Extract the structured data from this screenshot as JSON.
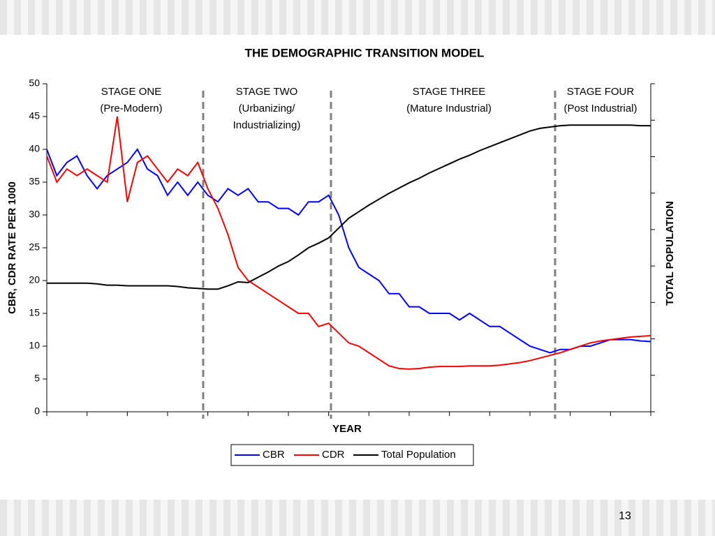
{
  "slide_number": "13",
  "chart_data": {
    "type": "line",
    "title": "THE DEMOGRAPHIC TRANSITION MODEL",
    "x_label": "YEAR",
    "y_label": "CBR, CDR RATE PER 1000",
    "y2_label": "TOTAL POPULATION",
    "ylim": [
      0,
      50
    ],
    "yticks": [
      0,
      5,
      10,
      15,
      20,
      25,
      30,
      35,
      40,
      45,
      50
    ],
    "stages": [
      {
        "lines": [
          "STAGE ONE",
          "(Pre-Modern)"
        ]
      },
      {
        "lines": [
          "STAGE TWO",
          "(Urbanizing/",
          "Industrializing)"
        ]
      },
      {
        "lines": [
          "STAGE THREE",
          "(Mature Industrial)"
        ]
      },
      {
        "lines": [
          "STAGE FOUR",
          "(Post Industrial)"
        ]
      }
    ],
    "legend": "bottom",
    "series": [
      {
        "name": "CBR",
        "color": "#0000ff",
        "values": [
          40,
          36,
          38,
          39,
          36,
          34,
          36,
          37,
          38,
          40,
          37,
          36,
          33,
          35,
          33,
          35,
          33,
          32,
          34,
          33,
          34,
          32,
          32,
          31,
          31,
          30,
          32,
          32,
          33,
          30,
          25,
          22,
          21,
          20,
          18,
          18,
          16,
          16,
          15,
          15,
          15,
          14,
          15,
          14,
          13,
          13,
          12,
          11,
          10,
          9.5,
          9,
          9.5,
          9.5,
          10,
          10,
          10.5,
          11,
          11,
          11,
          10.8,
          10.7
        ]
      },
      {
        "name": "CDR",
        "color": "#ff0000",
        "values": [
          39,
          35,
          37,
          36,
          37,
          36,
          35,
          45,
          32,
          38,
          39,
          37,
          35,
          37,
          36,
          38,
          34,
          31,
          27,
          22,
          20,
          19,
          18,
          17,
          16,
          15,
          15,
          13,
          13.5,
          12,
          10.5,
          10,
          9,
          8,
          7,
          6.6,
          6.5,
          6.6,
          6.8,
          6.9,
          6.9,
          6.9,
          7,
          7,
          7,
          7.1,
          7.3,
          7.5,
          7.8,
          8.2,
          8.6,
          9,
          9.5,
          10,
          10.5,
          10.8,
          11,
          11.2,
          11.4,
          11.5,
          11.6
        ]
      },
      {
        "name": "Total Population",
        "color": "#000000",
        "values": [
          19.6,
          19.6,
          19.6,
          19.6,
          19.6,
          19.5,
          19.3,
          19.3,
          19.2,
          19.2,
          19.2,
          19.2,
          19.2,
          19.1,
          18.9,
          18.8,
          18.7,
          18.7,
          19.2,
          19.8,
          19.7,
          20.5,
          21.3,
          22.2,
          22.9,
          23.9,
          25,
          25.7,
          26.5,
          28,
          29.5,
          30.5,
          31.5,
          32.4,
          33.3,
          34.1,
          34.9,
          35.6,
          36.4,
          37.1,
          37.8,
          38.5,
          39.1,
          39.8,
          40.4,
          41,
          41.6,
          42.2,
          42.8,
          43.2,
          43.4,
          43.6,
          43.7,
          43.7,
          43.7,
          43.7,
          43.7,
          43.7,
          43.7,
          43.6,
          43.6
        ]
      }
    ]
  }
}
